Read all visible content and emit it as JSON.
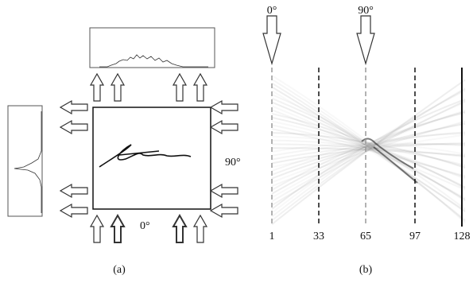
{
  "panel_a": {
    "angle_0": "0°",
    "angle_90": "90°",
    "caption": "(a)"
  },
  "panel_b": {
    "angle_0": "0°",
    "angle_90": "90°",
    "axis_labels": [
      "1",
      "33",
      "65",
      "97",
      "128"
    ],
    "caption": "(b)"
  }
}
